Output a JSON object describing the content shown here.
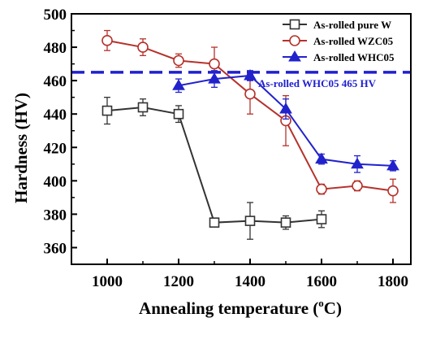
{
  "chart_data": {
    "type": "line",
    "title": "",
    "xlabel_main": "Annealing temperature (",
    "xlabel_sup": "o",
    "xlabel_tail": "C)",
    "ylabel": "Hardness (HV)",
    "xlim": [
      900,
      1850
    ],
    "ylim": [
      350,
      500
    ],
    "xticks": [
      1000,
      1200,
      1400,
      1600,
      1800
    ],
    "yticks": [
      360,
      380,
      400,
      420,
      440,
      460,
      480,
      500
    ],
    "grid": false,
    "legend_position": "top-right",
    "reference_line": {
      "value": 465,
      "label": "As-rolled WHC05 465 HV",
      "color": "#1f1fd0"
    },
    "series": [
      {
        "name": "As-rolled pure W",
        "marker": "square-open",
        "color": "#333333",
        "x": [
          1000,
          1100,
          1200,
          1300,
          1400,
          1500,
          1600
        ],
        "y": [
          442,
          444,
          440,
          375,
          376,
          375,
          377
        ],
        "err": [
          8,
          5,
          5,
          2,
          11,
          4,
          5
        ]
      },
      {
        "name": "As-rolled WZC05",
        "marker": "circle-open",
        "color": "#b5322c",
        "x": [
          1000,
          1100,
          1200,
          1300,
          1400,
          1500,
          1600,
          1700,
          1800
        ],
        "y": [
          484,
          480,
          472,
          470,
          452,
          436,
          395,
          397,
          394
        ],
        "err": [
          6,
          5,
          4,
          10,
          12,
          15,
          3,
          3,
          7
        ]
      },
      {
        "name": "As-rolled WHC05",
        "marker": "triangle-filled",
        "color": "#2222cc",
        "x": [
          1200,
          1300,
          1400,
          1500,
          1600,
          1700,
          1800
        ],
        "y": [
          457,
          461,
          463,
          443,
          413,
          410,
          409
        ],
        "err": [
          4,
          5,
          3,
          6,
          3,
          5,
          3
        ]
      }
    ]
  }
}
